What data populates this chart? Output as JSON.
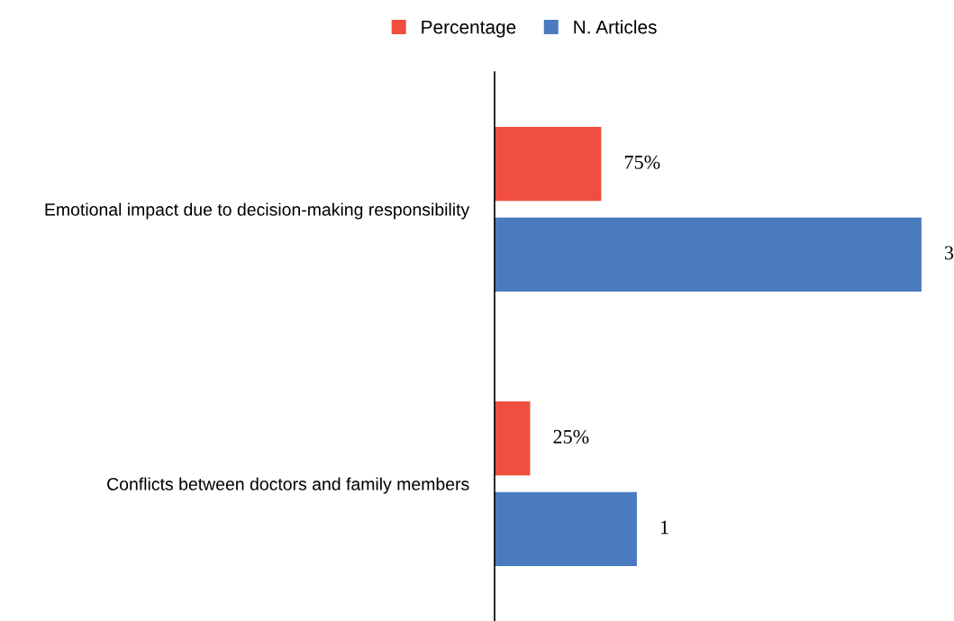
{
  "chart_data": {
    "type": "bar",
    "orientation": "horizontal",
    "categories": [
      "Emotional impact due to decision-making responsibility",
      "Conflicts between doctors and family members"
    ],
    "series": [
      {
        "name": "Percentage",
        "color": "#f04e3e",
        "values": [
          0.75,
          0.25
        ],
        "value_labels": [
          "75%",
          "25%"
        ]
      },
      {
        "name": "N. Articles",
        "color": "#4a7bbf",
        "values": [
          3,
          1
        ],
        "value_labels": [
          "3",
          "1"
        ]
      }
    ],
    "legend": "top",
    "grid": false,
    "tick_labels": "y"
  }
}
